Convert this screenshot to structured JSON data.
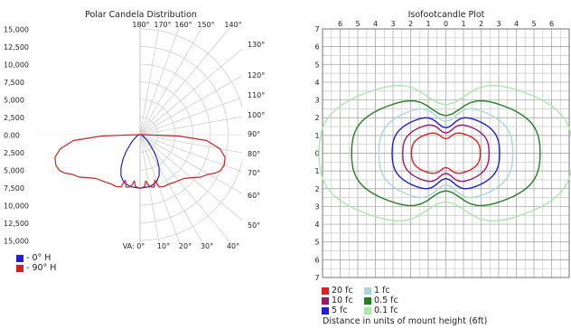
{
  "chart_data": [
    {
      "type": "polar",
      "title": "Polar Candela Distribution",
      "candela_tick_labels": [
        "15,000",
        "12,500",
        "10,000",
        "7,500",
        "5,000",
        "2,500",
        "0.00",
        "2,500",
        "5,000",
        "7,500",
        "10,000",
        "12,500",
        "15,000"
      ],
      "candela_max": 15000,
      "angle_labels_top": [
        "180°",
        "170°",
        "160°",
        "150°",
        "140°"
      ],
      "angle_labels_right": [
        "130°",
        "120°",
        "110°",
        "100°",
        "90°",
        "80°",
        "70°",
        "60°",
        "50°"
      ],
      "angle_labels_bottom": [
        "VA: 0°",
        "10°",
        "20°",
        "30°",
        "40°"
      ],
      "grid": true,
      "series": [
        {
          "name": "- 0° H",
          "color": "#2020d0",
          "points": [
            [
              0,
              7600
            ],
            [
              10,
              7500
            ],
            [
              15,
              7300
            ],
            [
              20,
              7000
            ],
            [
              25,
              6400
            ],
            [
              30,
              5400
            ],
            [
              35,
              4200
            ],
            [
              40,
              3000
            ],
            [
              45,
              2000
            ],
            [
              50,
              1400
            ],
            [
              55,
              900
            ],
            [
              60,
              600
            ],
            [
              70,
              350
            ],
            [
              80,
              200
            ],
            [
              90,
              80
            ],
            [
              100,
              40
            ],
            [
              120,
              20
            ],
            [
              150,
              10
            ],
            [
              180,
              0
            ]
          ]
        },
        {
          "name": "- 90° H",
          "color": "#d02020",
          "points": [
            [
              0,
              7600
            ],
            [
              5,
              7400
            ],
            [
              7,
              6600
            ],
            [
              9,
              7200
            ],
            [
              12,
              7600
            ],
            [
              15,
              7700
            ],
            [
              18,
              6800
            ],
            [
              20,
              7900
            ],
            [
              25,
              8100
            ],
            [
              30,
              8100
            ],
            [
              35,
              8300
            ],
            [
              40,
              8500
            ],
            [
              45,
              8800
            ],
            [
              50,
              9500
            ],
            [
              55,
              10500
            ],
            [
              60,
              11200
            ],
            [
              63,
              12000
            ],
            [
              66,
              12500
            ],
            [
              70,
              12700
            ],
            [
              75,
              12500
            ],
            [
              80,
              11500
            ],
            [
              85,
              9500
            ],
            [
              88,
              5500
            ],
            [
              90,
              200
            ],
            [
              92,
              60
            ],
            [
              100,
              20
            ],
            [
              120,
              10
            ],
            [
              180,
              0
            ]
          ]
        }
      ],
      "legend_position": "bottom-left"
    },
    {
      "type": "isoline",
      "title": "Isofootcandle Plot",
      "x_tick_labels": [
        "6",
        "5",
        "4",
        "3",
        "2",
        "1",
        "0",
        "1",
        "2",
        "3",
        "4",
        "5",
        "6"
      ],
      "y_tick_labels": [
        "7",
        "6",
        "5",
        "4",
        "3",
        "2",
        "1",
        "0",
        "1",
        "2",
        "3",
        "4",
        "5",
        "6",
        "7"
      ],
      "xlim": [
        -7,
        7
      ],
      "ylim": [
        -7,
        7
      ],
      "grid": true,
      "series": [
        {
          "name": "20 fc",
          "color": "#e02020",
          "half_width": 1.95,
          "half_height": 1.25
        },
        {
          "name": "10 fc",
          "color": "#9a1a6a",
          "half_width": 2.45,
          "half_height": 1.75
        },
        {
          "name": "5 fc",
          "color": "#2020d0",
          "half_width": 3.05,
          "half_height": 2.2
        },
        {
          "name": "1 fc",
          "color": "#a8d8d8",
          "half_width": 3.8,
          "half_height": 2.75
        },
        {
          "name": "0.5 fc",
          "color": "#208020",
          "half_width": 5.35,
          "half_height": 3.25
        },
        {
          "name": "0.1 fc",
          "color": "#a8e8a8",
          "half_width": 7.2,
          "half_height": 4.2
        }
      ],
      "note": "Distance in units of mount height (6ft)",
      "legend_position": "bottom-left"
    }
  ]
}
